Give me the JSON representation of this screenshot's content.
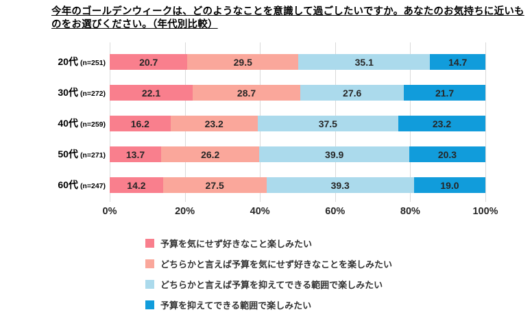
{
  "title": "今年のゴールデンウィークは、どのようなことを意識して過ごしたいですか。あなたのお気持ちに近いものをお選びください。（年代別比較）",
  "chart_data": {
    "type": "bar",
    "orientation": "horizontal",
    "stacked": true,
    "categories": [
      "20代",
      "30代",
      "40代",
      "50代",
      "60代"
    ],
    "sample_sizes": [
      "(n=251)",
      "(n=272)",
      "(n=259)",
      "(n=271)",
      "(n=247)"
    ],
    "series": [
      {
        "name": "予算を気にせず好きなこと楽しみたい",
        "color": "#F97F8D",
        "values": [
          20.7,
          22.1,
          16.2,
          13.7,
          14.2
        ]
      },
      {
        "name": "どちらかと言えば予算を気にせず好きなことを楽しみたい",
        "color": "#FAA79B",
        "values": [
          29.5,
          28.7,
          23.2,
          26.2,
          27.5
        ]
      },
      {
        "name": "どちらかと言えば予算を抑えてできる範囲で楽しみたい",
        "color": "#ABDAEC",
        "values": [
          35.1,
          27.6,
          37.5,
          39.9,
          39.3
        ]
      },
      {
        "name": "予算を抑えてできる範囲で楽しみたい",
        "color": "#119CDB",
        "values": [
          14.7,
          21.7,
          23.2,
          20.3,
          19.0
        ]
      }
    ],
    "x_ticks": [
      "0%",
      "20%",
      "40%",
      "60%",
      "80%",
      "100%"
    ],
    "xlim": [
      0,
      100
    ],
    "value_format": "one_decimal",
    "gridlines": true,
    "gridline_color": "#D9D9D9",
    "legend_position": "bottom-left"
  }
}
